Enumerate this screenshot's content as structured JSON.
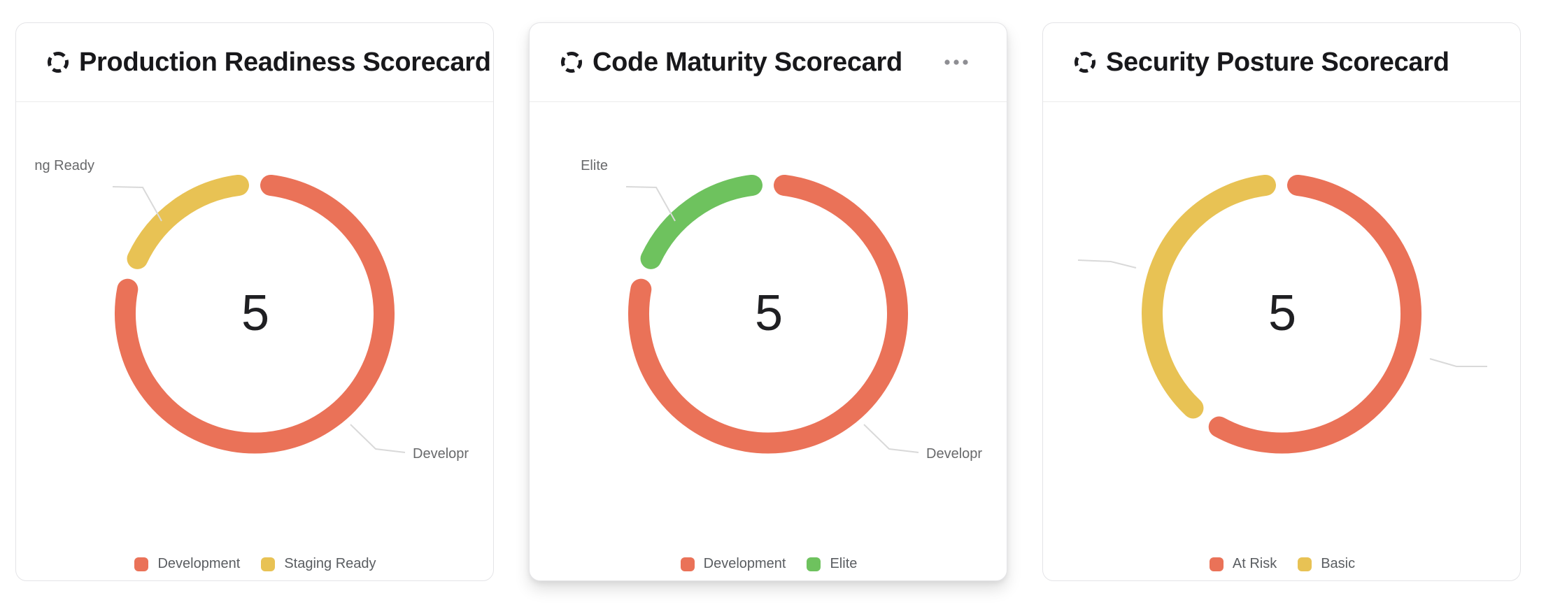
{
  "page": {
    "background": "#ffffff"
  },
  "icons": {
    "title_icon": "dashed-circle-scorecard-icon",
    "menu_icon": "ellipsis-menu-icon"
  },
  "colors": {
    "red": "#EA7258",
    "yellow": "#E8C254",
    "green": "#6EC25E",
    "leader_line": "#d9d9d9",
    "title_text": "#18181b",
    "legend_text": "#5a5d61"
  },
  "chart_data": [
    {
      "type": "pie",
      "variant": "donut",
      "title": "Production Readiness Scorecard",
      "center_label": "5",
      "total": 5,
      "segments": [
        {
          "name": "Development",
          "value": 4,
          "color": "#EA7258"
        },
        {
          "name": "Staging Ready",
          "value": 1,
          "color": "#E8C254"
        }
      ],
      "legend_position": "bottom",
      "callout_left": "ng Ready",
      "callout_right": "Developr",
      "has_menu": false
    },
    {
      "type": "pie",
      "variant": "donut",
      "title": "Code Maturity Scorecard",
      "center_label": "5",
      "total": 5,
      "segments": [
        {
          "name": "Development",
          "value": 4,
          "color": "#EA7258"
        },
        {
          "name": "Elite",
          "value": 1,
          "color": "#6EC25E"
        }
      ],
      "legend_position": "bottom",
      "callout_left": "Elite",
      "callout_right": "Developr",
      "has_menu": true
    },
    {
      "type": "pie",
      "variant": "donut",
      "title": "Security Posture Scorecard",
      "center_label": "5",
      "total": 5,
      "segments": [
        {
          "name": "At Risk",
          "value": 3,
          "color": "#EA7258"
        },
        {
          "name": "Basic",
          "value": 2,
          "color": "#E8C254"
        }
      ],
      "legend_position": "bottom",
      "callout_left": "",
      "callout_right": "",
      "has_menu": false
    }
  ]
}
